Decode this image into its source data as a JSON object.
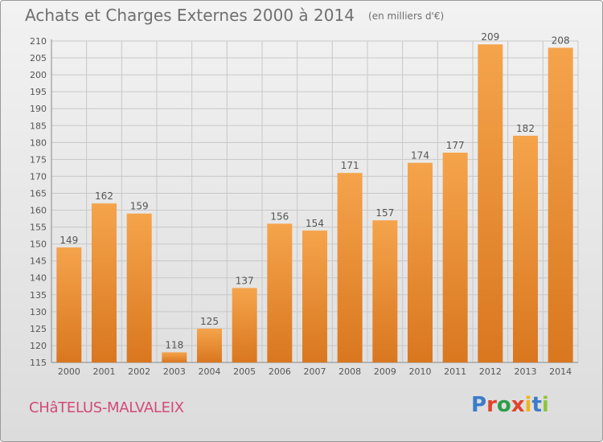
{
  "title": "Achats et Charges Externes 2000 à 2014",
  "unit_label": "(en milliers d'€)",
  "town": "CHâTELUS-MALVALEIX",
  "brand": {
    "text": "Proxiti",
    "letter_colors": [
      "#3a7cc9",
      "#e0432f",
      "#2e9c4a",
      "#e0432f",
      "#f2b516",
      "#3a7cc9",
      "#8cc63f"
    ]
  },
  "colors": {
    "bar_top": "#f5a44c",
    "bar_bottom": "#d9771f",
    "grid": "#c8c8c8",
    "text": "#555555",
    "town": "#d24a7a"
  },
  "chart_data": {
    "type": "bar",
    "categories": [
      "2000",
      "2001",
      "2002",
      "2003",
      "2004",
      "2005",
      "2006",
      "2007",
      "2008",
      "2009",
      "2010",
      "2011",
      "2012",
      "2013",
      "2014"
    ],
    "values": [
      149,
      162,
      159,
      118,
      125,
      137,
      156,
      154,
      171,
      157,
      174,
      177,
      209,
      182,
      208
    ],
    "ylim": [
      115,
      210
    ],
    "yticks": [
      115,
      120,
      125,
      130,
      135,
      140,
      145,
      150,
      155,
      160,
      165,
      170,
      175,
      180,
      185,
      190,
      195,
      200,
      205,
      210
    ],
    "grid": true,
    "legend": "none"
  }
}
